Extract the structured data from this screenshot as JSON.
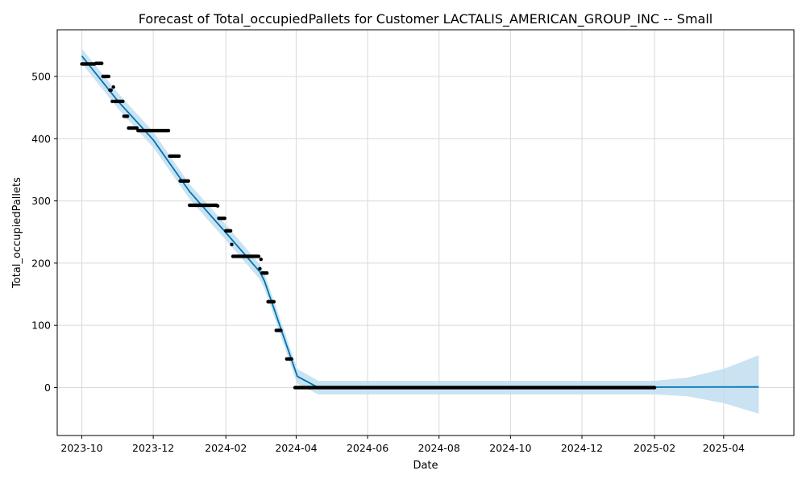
{
  "chart_data": {
    "type": "line",
    "title": "Forecast of Total_occupiedPallets for Customer LACTALIS_AMERICAN_GROUP_INC -- Small",
    "xlabel": "Date",
    "ylabel": "Total_occupiedPallets",
    "xlim": [
      "2023-09-10",
      "2025-05-31"
    ],
    "ylim": [
      -77,
      575
    ],
    "x_ticks": [
      "2023-10",
      "2023-12",
      "2024-02",
      "2024-04",
      "2024-06",
      "2024-08",
      "2024-10",
      "2024-12",
      "2025-02",
      "2025-04"
    ],
    "y_ticks": [
      0,
      100,
      200,
      300,
      400,
      500
    ],
    "grid": true,
    "colors": {
      "forecast_line": "#0072B2",
      "interval_fill": "#bcdcef",
      "observed_points": "#000000",
      "grid": "#d9d9d9"
    },
    "series": [
      {
        "role": "observed",
        "style": "points",
        "points": [
          [
            "2023-10-01",
            520
          ],
          [
            "2023-10-02",
            520
          ],
          [
            "2023-10-03",
            520
          ],
          [
            "2023-10-04",
            520
          ],
          [
            "2023-10-05",
            520
          ],
          [
            "2023-10-06",
            520
          ],
          [
            "2023-10-07",
            520
          ],
          [
            "2023-10-08",
            520
          ],
          [
            "2023-10-09",
            520
          ],
          [
            "2023-10-10",
            520
          ],
          [
            "2023-10-11",
            520
          ],
          [
            "2023-10-12",
            520
          ],
          [
            "2023-10-13",
            521
          ],
          [
            "2023-10-14",
            521
          ],
          [
            "2023-10-15",
            521
          ],
          [
            "2023-10-16",
            521
          ],
          [
            "2023-10-17",
            521
          ],
          [
            "2023-10-18",
            521
          ],
          [
            "2023-10-19",
            500
          ],
          [
            "2023-10-20",
            500
          ],
          [
            "2023-10-21",
            500
          ],
          [
            "2023-10-22",
            500
          ],
          [
            "2023-10-23",
            500
          ],
          [
            "2023-10-24",
            500
          ],
          [
            "2023-10-25",
            478
          ],
          [
            "2023-10-26",
            478
          ],
          [
            "2023-10-28",
            483
          ],
          [
            "2023-10-27",
            460
          ],
          [
            "2023-10-29",
            460
          ],
          [
            "2023-10-30",
            460
          ],
          [
            "2023-10-31",
            460
          ],
          [
            "2023-11-01",
            460
          ],
          [
            "2023-11-02",
            460
          ],
          [
            "2023-11-03",
            460
          ],
          [
            "2023-11-04",
            460
          ],
          [
            "2023-11-05",
            460
          ],
          [
            "2023-11-06",
            436
          ],
          [
            "2023-11-07",
            436
          ],
          [
            "2023-11-08",
            436
          ],
          [
            "2023-11-09",
            436
          ],
          [
            "2023-11-10",
            417
          ],
          [
            "2023-11-11",
            417
          ],
          [
            "2023-11-12",
            417
          ],
          [
            "2023-11-13",
            417
          ],
          [
            "2023-11-14",
            417
          ],
          [
            "2023-11-15",
            417
          ],
          [
            "2023-11-16",
            417
          ],
          [
            "2023-11-17",
            417
          ],
          [
            "2023-11-18",
            413
          ],
          [
            "2023-11-19",
            413
          ],
          [
            "2023-11-20",
            413
          ],
          [
            "2023-11-21",
            413
          ],
          [
            "2023-11-22",
            413
          ],
          [
            "2023-11-23",
            413
          ],
          [
            "2023-11-24",
            413
          ],
          [
            "2023-11-25",
            413
          ],
          [
            "2023-11-26",
            413
          ],
          [
            "2023-11-27",
            413
          ],
          [
            "2023-11-28",
            413
          ],
          [
            "2023-11-29",
            413
          ],
          [
            "2023-11-30",
            413
          ],
          [
            "2023-12-01",
            413
          ],
          [
            "2023-12-02",
            413
          ],
          [
            "2023-12-03",
            413
          ],
          [
            "2023-12-04",
            413
          ],
          [
            "2023-12-05",
            413
          ],
          [
            "2023-12-06",
            413
          ],
          [
            "2023-12-07",
            413
          ],
          [
            "2023-12-08",
            413
          ],
          [
            "2023-12-09",
            413
          ],
          [
            "2023-12-10",
            413
          ],
          [
            "2023-12-11",
            413
          ],
          [
            "2023-12-12",
            413
          ],
          [
            "2023-12-13",
            413
          ],
          [
            "2023-12-14",
            413
          ],
          [
            "2023-12-15",
            372
          ],
          [
            "2023-12-16",
            372
          ],
          [
            "2023-12-17",
            372
          ],
          [
            "2023-12-18",
            372
          ],
          [
            "2023-12-19",
            372
          ],
          [
            "2023-12-20",
            372
          ],
          [
            "2023-12-21",
            372
          ],
          [
            "2023-12-22",
            372
          ],
          [
            "2023-12-23",
            372
          ],
          [
            "2023-12-24",
            332
          ],
          [
            "2023-12-25",
            332
          ],
          [
            "2023-12-26",
            332
          ],
          [
            "2023-12-27",
            332
          ],
          [
            "2023-12-28",
            332
          ],
          [
            "2023-12-29",
            332
          ],
          [
            "2023-12-30",
            332
          ],
          [
            "2023-12-31",
            332
          ],
          [
            "2024-01-01",
            293
          ],
          [
            "2024-01-02",
            293
          ],
          [
            "2024-01-03",
            293
          ],
          [
            "2024-01-04",
            293
          ],
          [
            "2024-01-05",
            293
          ],
          [
            "2024-01-06",
            293
          ],
          [
            "2024-01-07",
            293
          ],
          [
            "2024-01-08",
            293
          ],
          [
            "2024-01-09",
            293
          ],
          [
            "2024-01-10",
            293
          ],
          [
            "2024-01-11",
            293
          ],
          [
            "2024-01-12",
            293
          ],
          [
            "2024-01-13",
            293
          ],
          [
            "2024-01-14",
            293
          ],
          [
            "2024-01-15",
            293
          ],
          [
            "2024-01-16",
            293
          ],
          [
            "2024-01-17",
            293
          ],
          [
            "2024-01-18",
            293
          ],
          [
            "2024-01-19",
            293
          ],
          [
            "2024-01-20",
            293
          ],
          [
            "2024-01-21",
            293
          ],
          [
            "2024-01-22",
            293
          ],
          [
            "2024-01-23",
            293
          ],
          [
            "2024-01-24",
            293
          ],
          [
            "2024-01-25",
            292
          ],
          [
            "2024-01-26",
            272
          ],
          [
            "2024-01-27",
            272
          ],
          [
            "2024-01-28",
            272
          ],
          [
            "2024-01-29",
            272
          ],
          [
            "2024-01-30",
            272
          ],
          [
            "2024-01-31",
            272
          ],
          [
            "2024-02-01",
            252
          ],
          [
            "2024-02-02",
            252
          ],
          [
            "2024-02-03",
            252
          ],
          [
            "2024-02-04",
            252
          ],
          [
            "2024-02-05",
            252
          ],
          [
            "2024-02-06",
            230
          ],
          [
            "2024-02-07",
            211
          ],
          [
            "2024-02-08",
            211
          ],
          [
            "2024-02-09",
            211
          ],
          [
            "2024-02-10",
            211
          ],
          [
            "2024-02-11",
            211
          ],
          [
            "2024-02-12",
            211
          ],
          [
            "2024-02-13",
            211
          ],
          [
            "2024-02-14",
            211
          ],
          [
            "2024-02-15",
            211
          ],
          [
            "2024-02-16",
            211
          ],
          [
            "2024-02-17",
            211
          ],
          [
            "2024-02-18",
            211
          ],
          [
            "2024-02-19",
            211
          ],
          [
            "2024-02-20",
            211
          ],
          [
            "2024-02-21",
            211
          ],
          [
            "2024-02-22",
            211
          ],
          [
            "2024-02-23",
            211
          ],
          [
            "2024-02-24",
            211
          ],
          [
            "2024-02-25",
            211
          ],
          [
            "2024-02-26",
            211
          ],
          [
            "2024-02-27",
            211
          ],
          [
            "2024-02-28",
            211
          ],
          [
            "2024-02-29",
            211
          ],
          [
            "2024-03-01",
            191
          ],
          [
            "2024-03-02",
            206
          ],
          [
            "2024-03-03",
            184
          ],
          [
            "2024-03-04",
            184
          ],
          [
            "2024-03-05",
            184
          ],
          [
            "2024-03-06",
            184
          ],
          [
            "2024-03-07",
            184
          ],
          [
            "2024-03-08",
            138
          ],
          [
            "2024-03-09",
            138
          ],
          [
            "2024-03-10",
            138
          ],
          [
            "2024-03-11",
            138
          ],
          [
            "2024-03-12",
            138
          ],
          [
            "2024-03-13",
            138
          ],
          [
            "2024-03-15",
            92
          ],
          [
            "2024-03-16",
            92
          ],
          [
            "2024-03-17",
            92
          ],
          [
            "2024-03-18",
            92
          ],
          [
            "2024-03-19",
            92
          ],
          [
            "2024-03-24",
            46
          ],
          [
            "2024-03-25",
            46
          ],
          [
            "2024-03-26",
            46
          ],
          [
            "2024-03-27",
            46
          ],
          [
            "2024-03-28",
            46
          ],
          [
            "2024-03-31",
            0
          ]
        ],
        "zero_run": [
          "2024-04-01",
          "2025-02-01"
        ]
      },
      {
        "role": "forecast",
        "style": "line",
        "points": [
          [
            "2023-10-01",
            533
          ],
          [
            "2023-11-01",
            460
          ],
          [
            "2023-12-01",
            398
          ],
          [
            "2024-01-01",
            315
          ],
          [
            "2024-02-01",
            249
          ],
          [
            "2024-03-01",
            186
          ],
          [
            "2024-03-05",
            171
          ],
          [
            "2024-04-02",
            18
          ],
          [
            "2024-04-20",
            0
          ],
          [
            "2025-05-01",
            1
          ]
        ]
      },
      {
        "role": "interval",
        "style": "band",
        "upper": [
          [
            "2023-10-01",
            545
          ],
          [
            "2023-11-01",
            473
          ],
          [
            "2023-12-01",
            411
          ],
          [
            "2024-01-01",
            327
          ],
          [
            "2024-02-01",
            262
          ],
          [
            "2024-03-01",
            198
          ],
          [
            "2024-03-05",
            183
          ],
          [
            "2024-04-02",
            30
          ],
          [
            "2024-04-20",
            11
          ],
          [
            "2024-06-01",
            11
          ],
          [
            "2024-09-01",
            11
          ],
          [
            "2025-02-01",
            11
          ],
          [
            "2025-03-01",
            16
          ],
          [
            "2025-04-01",
            30
          ],
          [
            "2025-05-01",
            52
          ]
        ],
        "lower": [
          [
            "2023-10-01",
            521
          ],
          [
            "2023-11-01",
            448
          ],
          [
            "2023-12-01",
            386
          ],
          [
            "2024-01-01",
            303
          ],
          [
            "2024-02-01",
            237
          ],
          [
            "2024-03-01",
            174
          ],
          [
            "2024-03-05",
            159
          ],
          [
            "2024-04-02",
            6
          ],
          [
            "2024-04-20",
            -11
          ],
          [
            "2024-06-01",
            -11
          ],
          [
            "2024-09-01",
            -11
          ],
          [
            "2025-02-01",
            -11
          ],
          [
            "2025-03-01",
            -14
          ],
          [
            "2025-04-01",
            -25
          ],
          [
            "2025-05-01",
            -42
          ]
        ]
      }
    ]
  }
}
